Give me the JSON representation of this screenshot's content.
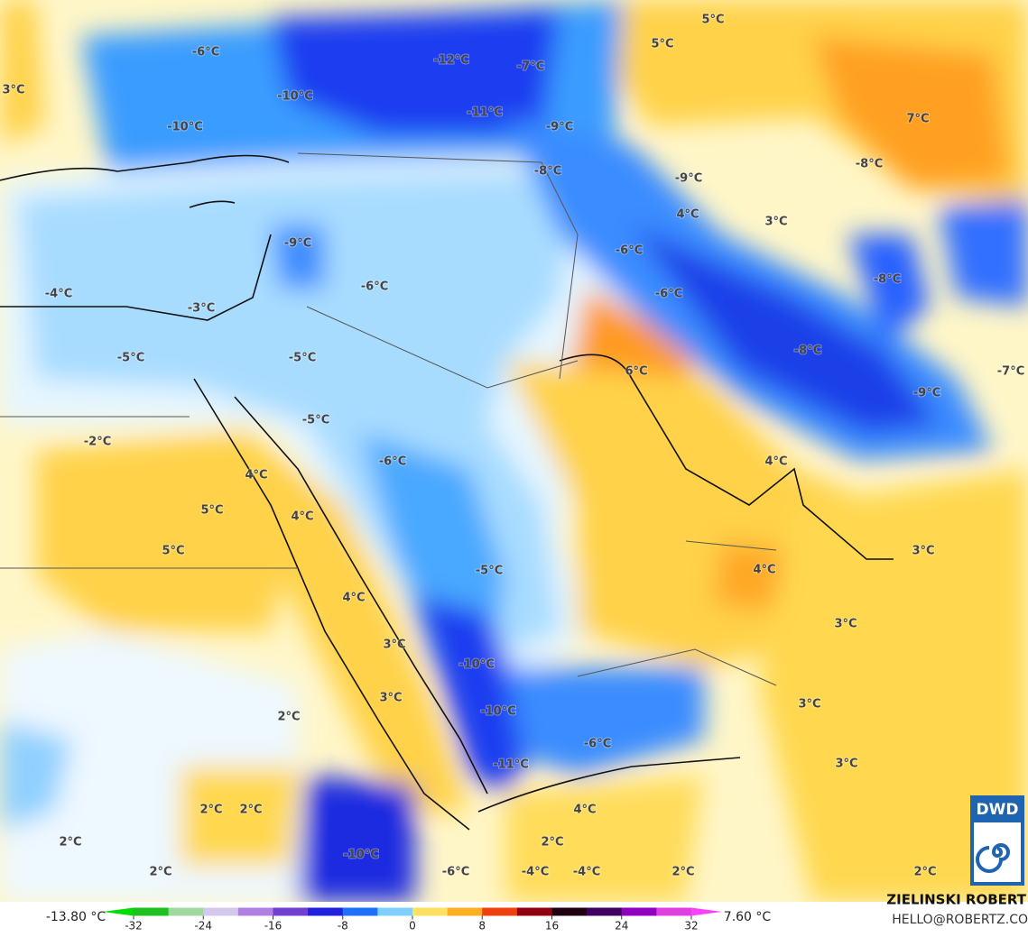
{
  "map": {
    "labels": [
      "-6°C",
      "-12°C",
      "-7°C",
      "5°C",
      "5°C",
      "3°C",
      "-10°C",
      "-11°C",
      "7°C",
      "-10°C",
      "-9°C",
      "-8°C",
      "-9°C",
      "-8°C",
      "4°C",
      "3°C",
      "-9°C",
      "-6°C",
      "-8°C",
      "-6°C",
      "-4°C",
      "-6°C",
      "-3°C",
      "-8°C",
      "-5°C",
      "-5°C",
      "6°C",
      "-7°C",
      "-9°C",
      "-5°C",
      "-2°C",
      "-6°C",
      "4°C",
      "4°C",
      "5°C",
      "4°C",
      "5°C",
      "3°C",
      "-5°C",
      "4°C",
      "4°C",
      "3°C",
      "3°C",
      "-10°C",
      "3°C",
      "3°C",
      "-10°C",
      "2°C",
      "-6°C",
      "-11°C",
      "3°C",
      "2°C",
      "2°C",
      "4°C",
      "2°C",
      "2°C",
      "-10°C",
      "2°C",
      "-6°C",
      "-4°C",
      "-4°C",
      "2°C",
      "2°C"
    ]
  },
  "colorbar": {
    "min_label": "-13.80 °C",
    "max_label": "7.60 °C",
    "range": [
      -32,
      32
    ],
    "ticks": [
      -32,
      -24,
      -16,
      -8,
      0,
      8,
      16,
      24,
      32
    ],
    "colors": [
      "#1fc01f",
      "#a0d8a0",
      "#d4c8ec",
      "#b080e0",
      "#7040d0",
      "#2020e0",
      "#2070ff",
      "#80d0ff",
      "#ffe060",
      "#ffb020",
      "#f04010",
      "#900010",
      "#200010",
      "#400060",
      "#9000c0",
      "#e040e0"
    ],
    "low_color": "#00dd00",
    "high_color": "#ff40ff"
  },
  "credit": {
    "name": "ZIELINSKI ROBERT",
    "contact": "HELLO@ROBERTZ.CO"
  },
  "logo": "DWD"
}
